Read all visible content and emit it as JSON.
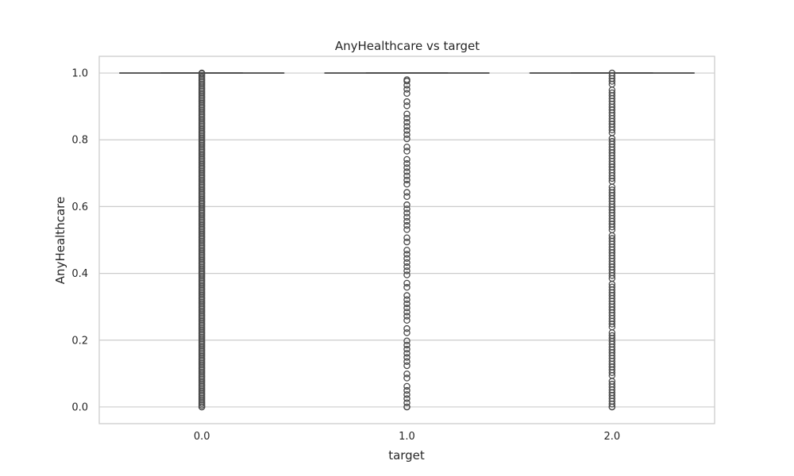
{
  "chart_data": {
    "type": "box",
    "title": "AnyHealthcare vs target",
    "xlabel": "target",
    "ylabel": "AnyHealthcare",
    "categories": [
      "0.0",
      "1.0",
      "2.0"
    ],
    "y_ticks": [
      "0.0",
      "0.2",
      "0.4",
      "0.6",
      "0.8",
      "1.0"
    ],
    "ylim": [
      -0.05,
      1.05
    ],
    "grid": true,
    "box_color": "#4a4a4a",
    "grid_color": "#cccccc",
    "boxes": [
      {
        "category": "0.0",
        "q1": 1.0,
        "median": 1.0,
        "q3": 1.0,
        "whisker_low": 1.0,
        "whisker_high": 1.0,
        "outlier_range": [
          0.0,
          1.0
        ],
        "outlier_density": "dense"
      },
      {
        "category": "1.0",
        "q1": 1.0,
        "median": 1.0,
        "q3": 1.0,
        "whisker_low": 1.0,
        "whisker_high": 1.0,
        "outlier_range": [
          0.0,
          0.98
        ],
        "outlier_density": "sparse"
      },
      {
        "category": "2.0",
        "q1": 1.0,
        "median": 1.0,
        "q3": 1.0,
        "whisker_low": 1.0,
        "whisker_high": 1.0,
        "outlier_range": [
          0.0,
          1.0
        ],
        "outlier_density": "medium"
      }
    ]
  }
}
